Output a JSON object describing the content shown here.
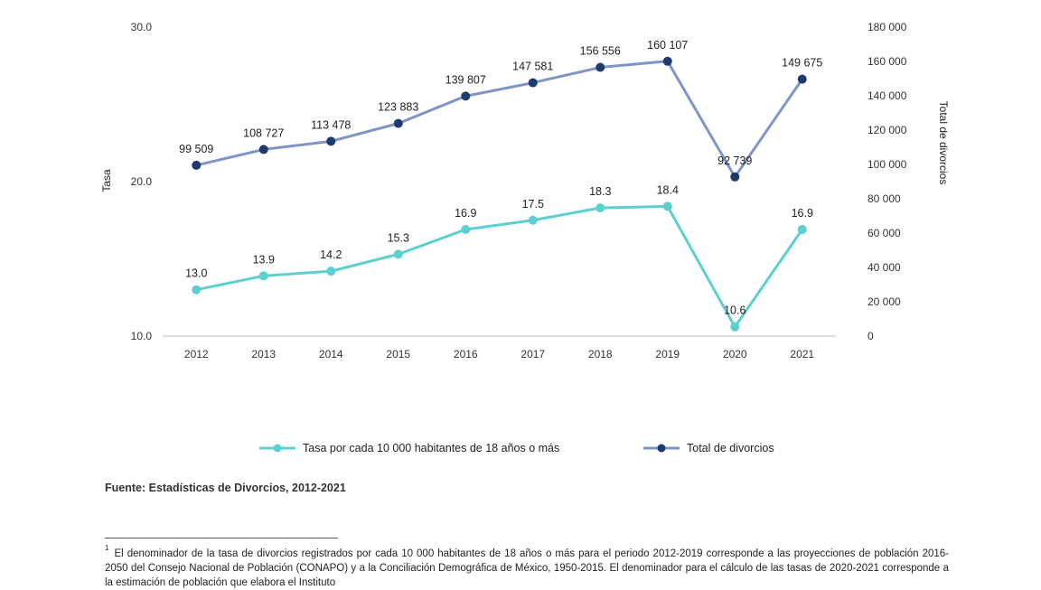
{
  "chart_data": {
    "type": "line",
    "categories": [
      "2012",
      "2013",
      "2014",
      "2015",
      "2016",
      "2017",
      "2018",
      "2019",
      "2020",
      "2021"
    ],
    "series": [
      {
        "name": "Tasa por cada 10 000 habitantes de 18 años o más",
        "axis": "left",
        "values": [
          13.0,
          13.9,
          14.2,
          15.3,
          16.9,
          17.5,
          18.3,
          18.4,
          10.6,
          16.9
        ],
        "labels": [
          "13.0",
          "13.9",
          "14.2",
          "15.3",
          "16.9",
          "17.5",
          "18.3",
          "18.4",
          "10.6",
          "16.9"
        ],
        "color": "#5ccfd0"
      },
      {
        "name": "Total de divorcios",
        "axis": "right",
        "values": [
          99509,
          108727,
          113478,
          123883,
          139807,
          147581,
          156556,
          160107,
          92739,
          149675
        ],
        "labels": [
          "99 509",
          "108 727",
          "113 478",
          "123 883",
          "139 807",
          "147 581",
          "156 556",
          "160 107",
          "92 739",
          "149 675"
        ],
        "color": "#7f95c6",
        "marker_color": "#1f3a6e"
      }
    ],
    "ylabel": "Tasa",
    "y2label": "Total de divorcios",
    "ylim": [
      10,
      30
    ],
    "y2lim": [
      0,
      180000
    ],
    "yticks": [
      "10.0",
      "20.0",
      "30.0"
    ],
    "yticks_values": [
      10,
      20,
      30
    ],
    "y2ticks": [
      "0",
      "20 000",
      "40 000",
      "60 000",
      "80 000",
      "100 000",
      "120 000",
      "140 000",
      "160 000",
      "180 000"
    ],
    "y2ticks_values": [
      0,
      20000,
      40000,
      60000,
      80000,
      100000,
      120000,
      140000,
      160000,
      180000
    ],
    "legend_position": "bottom",
    "grid": false
  },
  "legend": {
    "series1": "Tasa por cada 10 000 habitantes de 18 años o más",
    "series2": "Total de divorcios"
  },
  "source": "Fuente: Estadísticas de Divorcios, 2012-2021",
  "footnote": {
    "marker": "1",
    "text": "El denominador de la tasa de divorcios registrados por cada 10 000 habitantes de 18 años o más para el periodo 2012-2019 corresponde a las proyecciones de población 2016-2050 del Consejo Nacional de Población (CONAPO) y a la Conciliación Demográfica de México, 1950-2015. El denominador para el cálculo de las tasas de 2020-2021 corresponde a la estimación de población que elabora el Instituto"
  },
  "colors": {
    "tasa": "#5ccfd0",
    "total_line": "#7f95c6",
    "total_marker": "#1f3a6e",
    "axis": "#bfbfbf"
  }
}
